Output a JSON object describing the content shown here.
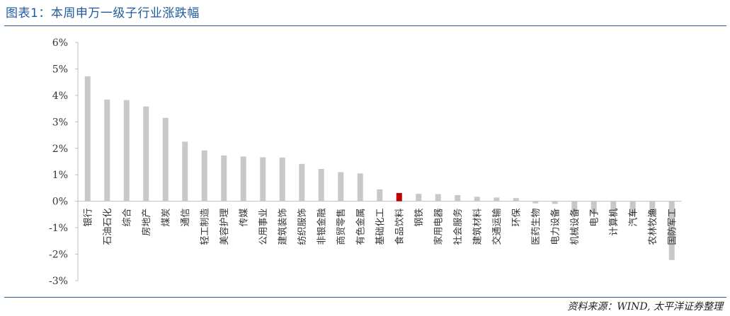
{
  "header": {
    "title": "图表1：本周申万一级子行业涨跌幅"
  },
  "footer": {
    "source": "资料来源：WIND, 太平洋证券整理"
  },
  "colors": {
    "bar_default": "#c8c8c8",
    "bar_highlight": "#c00000",
    "accent": "#1f5a9e"
  },
  "chart_data": {
    "type": "bar",
    "title": "",
    "xlabel": "",
    "ylabel": "",
    "ylim": [
      -3,
      6
    ],
    "ytick_values": [
      -3,
      -2,
      -1,
      0,
      1,
      2,
      3,
      4,
      5,
      6
    ],
    "ytick_labels": [
      "-3%",
      "-2%",
      "-1%",
      "0%",
      "1%",
      "2%",
      "3%",
      "4%",
      "5%",
      "6%"
    ],
    "grid": false,
    "legend": false,
    "highlight_category": "食品饮料",
    "categories": [
      "银行",
      "石油石化",
      "综合",
      "房地产",
      "煤炭",
      "通信",
      "轻工制造",
      "美容护理",
      "传媒",
      "公用事业",
      "建筑装饰",
      "纺织服饰",
      "非银金融",
      "商贸零售",
      "有色金属",
      "基础化工",
      "食品饮料",
      "钢铁",
      "家用电器",
      "社会服务",
      "建筑材料",
      "交通运输",
      "环保",
      "医药生物",
      "电力设备",
      "机械设备",
      "电子",
      "计算机",
      "汽车",
      "农林牧渔",
      "国防军工"
    ],
    "values": [
      4.72,
      3.84,
      3.82,
      3.58,
      3.15,
      2.25,
      1.92,
      1.73,
      1.69,
      1.66,
      1.65,
      1.41,
      1.22,
      1.1,
      1.05,
      0.45,
      0.31,
      0.28,
      0.27,
      0.23,
      0.17,
      0.14,
      0.12,
      -0.08,
      -0.1,
      -0.38,
      -0.48,
      -0.52,
      -0.55,
      -0.6,
      -2.22
    ]
  }
}
